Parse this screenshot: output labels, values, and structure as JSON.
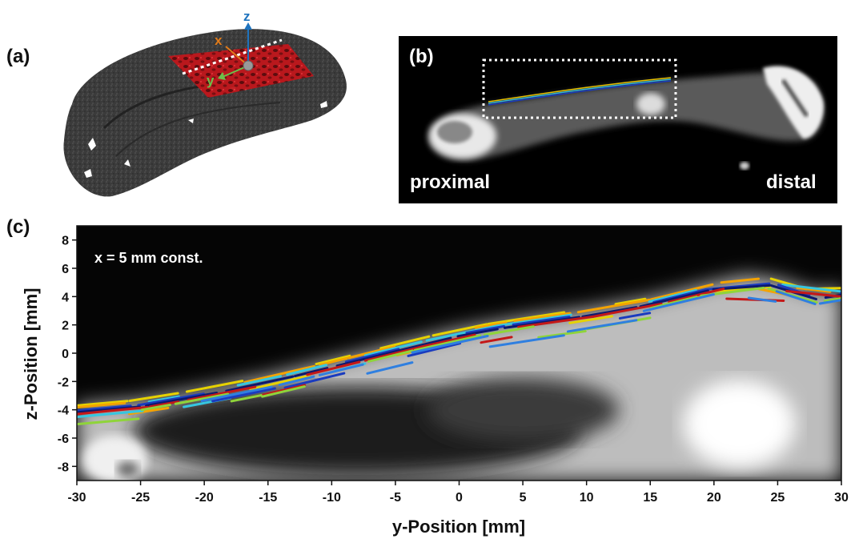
{
  "panels": {
    "a": {
      "letter": "(a)",
      "axes": {
        "x": "x",
        "y": "y",
        "z": "z"
      }
    },
    "b": {
      "letter": "(b)",
      "proximal": "proximal",
      "distal": "distal"
    },
    "c": {
      "letter": "(c)",
      "annotation": "x = 5 mm const."
    }
  },
  "colors": {
    "tissue": "#3a3a3a",
    "red_region": "#c0161b",
    "z_axis": "#1e73be",
    "x_axis": "#e07b1a",
    "y_axis": "#6cc04a"
  },
  "chart_data": {
    "type": "line",
    "xlabel": "y-Position [mm]",
    "ylabel": "z-Position [mm]",
    "xlim": [
      -30,
      30
    ],
    "ylim": [
      -9,
      9
    ],
    "xticks": [
      -30,
      -25,
      -20,
      -15,
      -10,
      -5,
      0,
      5,
      10,
      15,
      20,
      25,
      30
    ],
    "yticks": [
      -8,
      -6,
      -4,
      -2,
      0,
      2,
      4,
      6,
      8
    ],
    "surface": {
      "x": [
        -30,
        -25,
        -20,
        -15,
        -10,
        -5,
        0,
        5,
        10,
        15,
        20,
        22.5,
        25,
        28,
        30
      ],
      "y": [
        -3.7,
        -3.3,
        -2.5,
        -1.6,
        -0.5,
        0.6,
        1.7,
        2.5,
        3.1,
        3.9,
        5.0,
        5.5,
        5.2,
        4.3,
        4.6
      ]
    }
  }
}
